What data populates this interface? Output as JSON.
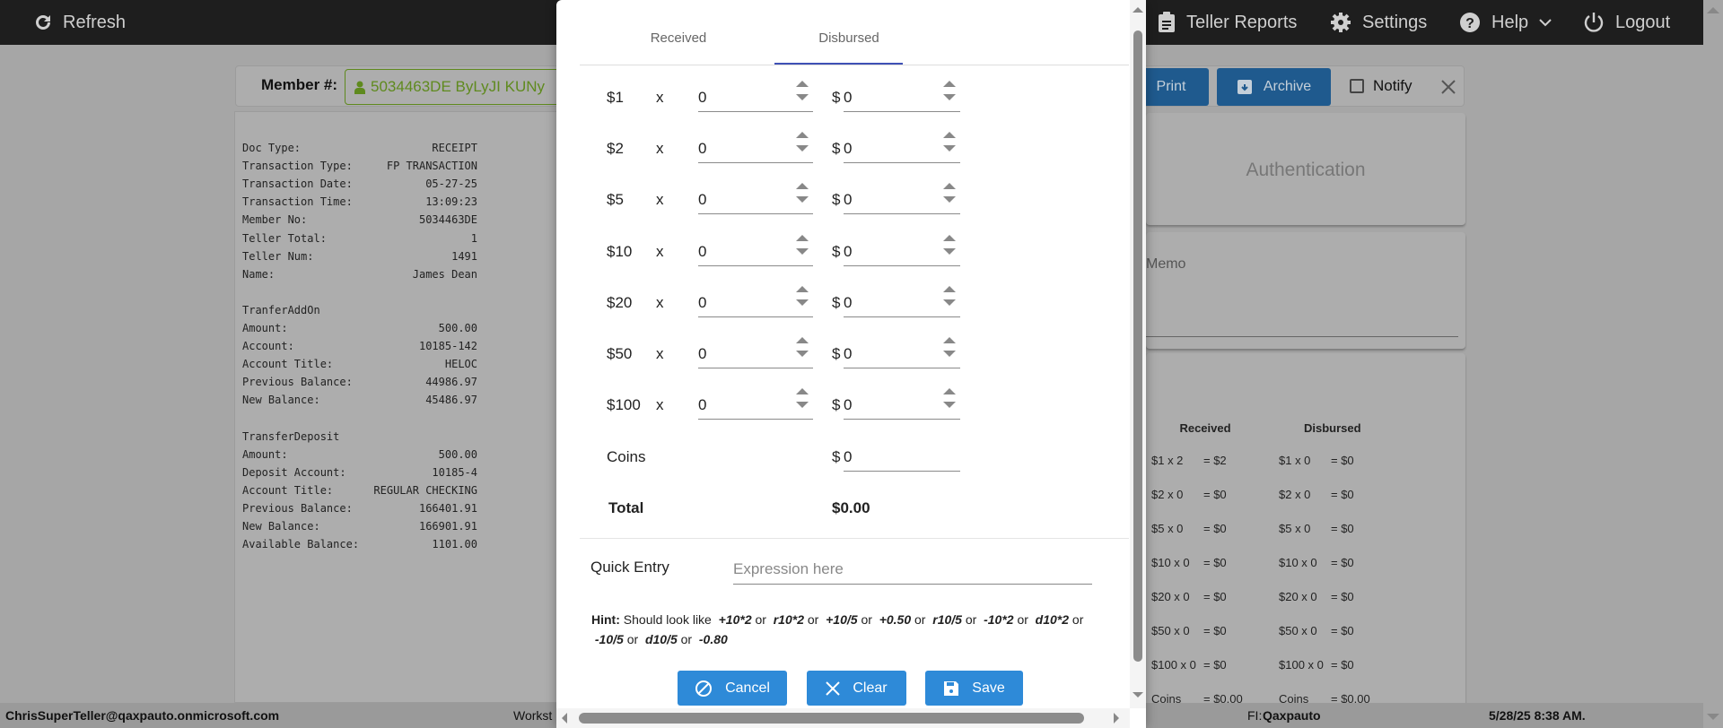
{
  "nav": {
    "refresh": "Refresh",
    "teller_reports": "Teller Reports",
    "settings": "Settings",
    "help": "Help",
    "logout": "Logout"
  },
  "member": {
    "label": "Member #:",
    "value": "5034463DE ByLyJI KUNy"
  },
  "toolbar": {
    "print": "Print",
    "archive": "Archive",
    "notify": "Notify"
  },
  "receipt": [
    [
      "Doc Type:",
      "RECEIPT"
    ],
    [
      "Transaction Type:",
      "FP TRANSACTION"
    ],
    [
      "Transaction Date:",
      "05-27-25"
    ],
    [
      "Transaction Time:",
      "13:09:23"
    ],
    [
      "Member No:",
      "5034463DE"
    ],
    [
      "Teller Total:",
      "1"
    ],
    [
      "Teller Num:",
      "1491"
    ],
    [
      "Name:",
      "James Dean"
    ],
    [
      "",
      ""
    ],
    [
      "TranferAddOn",
      ""
    ],
    [
      "Amount:",
      "500.00"
    ],
    [
      "Account:",
      "10185-142"
    ],
    [
      "Account Title:",
      "HELOC"
    ],
    [
      "Previous Balance:",
      "44986.97"
    ],
    [
      "New Balance:",
      "45486.97"
    ],
    [
      "",
      ""
    ],
    [
      "TransferDeposit",
      ""
    ],
    [
      "Amount:",
      "500.00"
    ],
    [
      "Deposit Account:",
      "10185-4"
    ],
    [
      "Account Title:",
      "REGULAR CHECKING"
    ],
    [
      "Previous Balance:",
      "166401.91"
    ],
    [
      "New Balance:",
      "166901.91"
    ],
    [
      "Available Balance:",
      "1101.00"
    ]
  ],
  "cards": {
    "authentication": "Authentication",
    "memo": "Memo"
  },
  "summary": {
    "received_header": "Received",
    "disbursed_header": "Disbursed",
    "received": [
      [
        "$1 x 2",
        "= $2"
      ],
      [
        "$2 x 0",
        "= $0"
      ],
      [
        "$5 x 0",
        "= $0"
      ],
      [
        "$10 x 0",
        "= $0"
      ],
      [
        "$20 x 0",
        "= $0"
      ],
      [
        "$50 x 0",
        "= $0"
      ],
      [
        "$100 x 0",
        "= $0"
      ],
      [
        "Coins",
        "= $0.00"
      ]
    ],
    "disbursed": [
      [
        "$1 x 0",
        "= $0"
      ],
      [
        "$2 x 0",
        "= $0"
      ],
      [
        "$5 x 0",
        "= $0"
      ],
      [
        "$10 x 0",
        "= $0"
      ],
      [
        "$20 x 0",
        "= $0"
      ],
      [
        "$50 x 0",
        "= $0"
      ],
      [
        "$100 x 0",
        "= $0"
      ],
      [
        "Coins",
        "= $0.00"
      ]
    ]
  },
  "footer": {
    "user": "ChrisSuperTeller@qaxpauto.onmicrosoft.com",
    "workstation": "Workst",
    "fi_label": "FI:",
    "fi_value": "Qaxpauto",
    "datetime": "5/28/25 8:38 AM."
  },
  "modal": {
    "tabs": [
      "Received",
      "Disbursed"
    ],
    "active_tab": "Disbursed",
    "accent": "#3f51b5",
    "rows": [
      {
        "denom": "$1",
        "x": "x",
        "qty": "0",
        "cur": "$",
        "amount": "0"
      },
      {
        "denom": "$2",
        "x": "x",
        "qty": "0",
        "cur": "$",
        "amount": "0"
      },
      {
        "denom": "$5",
        "x": "x",
        "qty": "0",
        "cur": "$",
        "amount": "0"
      },
      {
        "denom": "$10",
        "x": "x",
        "qty": "0",
        "cur": "$",
        "amount": "0"
      },
      {
        "denom": "$20",
        "x": "x",
        "qty": "0",
        "cur": "$",
        "amount": "0"
      },
      {
        "denom": "$50",
        "x": "x",
        "qty": "0",
        "cur": "$",
        "amount": "0"
      },
      {
        "denom": "$100",
        "x": "x",
        "qty": "0",
        "cur": "$",
        "amount": "0"
      }
    ],
    "coins_label": "Coins",
    "coins_cur": "$",
    "coins_value": "0",
    "total_label": "Total",
    "total_value": "$0.00",
    "quick_entry_label": "Quick Entry",
    "quick_entry_placeholder": "Expression here",
    "quick_entry_value": "",
    "hint_label": "Hint:",
    "hint_text": "Should look like",
    "hint_examples": [
      "+10*2",
      "r10*2",
      "+10/5",
      "+0.50",
      "r10/5",
      "-10*2",
      "d10*2",
      "-10/5",
      "d10/5",
      "-0.80"
    ],
    "hint_or": "or",
    "cancel": "Cancel",
    "clear": "Clear",
    "save": "Save"
  }
}
